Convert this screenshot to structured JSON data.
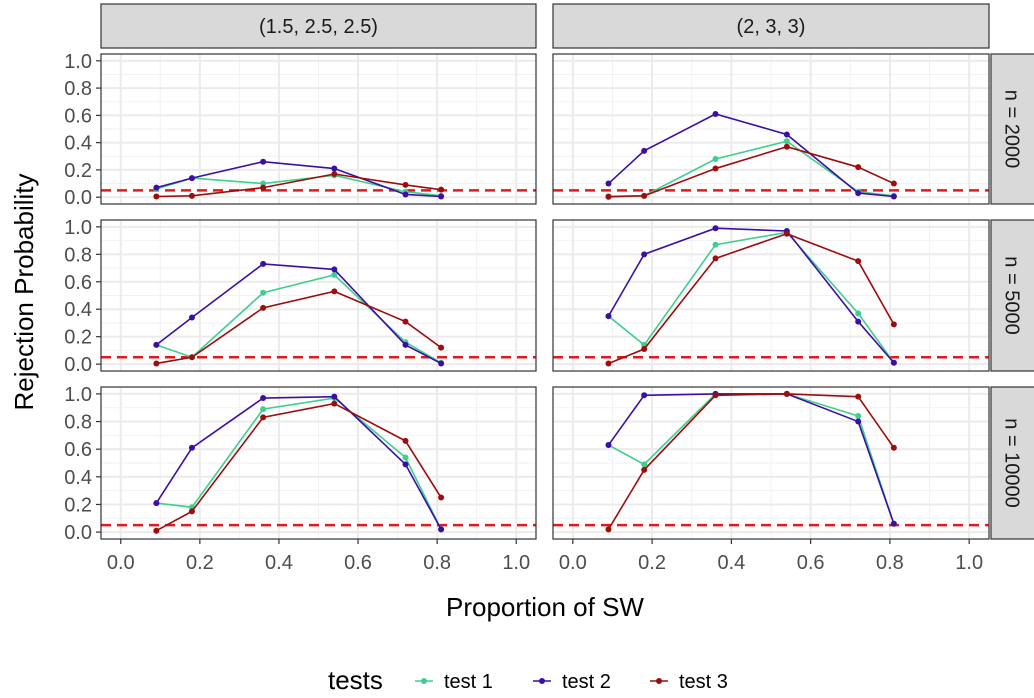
{
  "chart_data": {
    "type": "line",
    "ylabel": "Rejection Probability",
    "xlabel": "Proportion of SW",
    "xlim": [
      -0.05,
      1.05
    ],
    "ylim": [
      -0.05,
      1.05
    ],
    "x_ticks": [
      "0.0",
      "0.2",
      "0.4",
      "0.6",
      "0.8",
      "1.0"
    ],
    "y_ticks": [
      "0.0",
      "0.2",
      "0.4",
      "0.6",
      "0.8",
      "1.0"
    ],
    "x_tick_values": [
      0,
      0.2,
      0.4,
      0.6,
      0.8,
      1.0
    ],
    "y_tick_values": [
      0,
      0.2,
      0.4,
      0.6,
      0.8,
      1.0
    ],
    "reference_line": {
      "y": 0.05,
      "color": "#e31a1c",
      "style": "dashed"
    },
    "grid": true,
    "legend": {
      "title": "tests",
      "position": "bottom",
      "entries": [
        {
          "label": "test 1",
          "color": "#3ecf8e"
        },
        {
          "label": "test 2",
          "color": "#3b0fa6"
        },
        {
          "label": "test 3",
          "color": "#9c0d0d"
        }
      ]
    },
    "col_strips": [
      "(1.5, 2.5, 2.5)",
      "(2, 3, 3)"
    ],
    "row_strips": [
      "n = 2000",
      "n = 5000",
      "n = 10000"
    ],
    "x": [
      0.09,
      0.18,
      0.36,
      0.54,
      0.72,
      0.81
    ],
    "panels": [
      {
        "col": 0,
        "row": 0,
        "series": [
          {
            "name": "test 1",
            "values": [
              0.06,
              0.14,
              0.1,
              0.16,
              0.04,
              0.01
            ]
          },
          {
            "name": "test 2",
            "values": [
              0.07,
              0.14,
              0.26,
              0.21,
              0.02,
              0.005
            ]
          },
          {
            "name": "test 3",
            "values": [
              0.005,
              0.01,
              0.07,
              0.17,
              0.09,
              0.055
            ]
          }
        ]
      },
      {
        "col": 1,
        "row": 0,
        "series": [
          {
            "name": "test 1",
            "values": [
              0.0,
              0.01,
              0.28,
              0.41,
              0.04,
              0.01
            ]
          },
          {
            "name": "test 2",
            "values": [
              0.1,
              0.34,
              0.61,
              0.46,
              0.03,
              0.005
            ]
          },
          {
            "name": "test 3",
            "values": [
              0.005,
              0.01,
              0.21,
              0.37,
              0.22,
              0.1
            ]
          }
        ]
      },
      {
        "col": 0,
        "row": 1,
        "series": [
          {
            "name": "test 1",
            "values": [
              0.14,
              0.05,
              0.52,
              0.65,
              0.16,
              0.01
            ]
          },
          {
            "name": "test 2",
            "values": [
              0.14,
              0.34,
              0.73,
              0.69,
              0.14,
              0.005
            ]
          },
          {
            "name": "test 3",
            "values": [
              0.005,
              0.05,
              0.41,
              0.53,
              0.31,
              0.12
            ]
          }
        ]
      },
      {
        "col": 1,
        "row": 1,
        "series": [
          {
            "name": "test 1",
            "values": [
              0.35,
              0.14,
              0.87,
              0.96,
              0.37,
              0.01
            ]
          },
          {
            "name": "test 2",
            "values": [
              0.35,
              0.8,
              0.99,
              0.97,
              0.31,
              0.01
            ]
          },
          {
            "name": "test 3",
            "values": [
              0.005,
              0.11,
              0.77,
              0.95,
              0.75,
              0.29
            ]
          }
        ]
      },
      {
        "col": 0,
        "row": 2,
        "series": [
          {
            "name": "test 1",
            "values": [
              0.21,
              0.18,
              0.89,
              0.97,
              0.54,
              0.02
            ]
          },
          {
            "name": "test 2",
            "values": [
              0.21,
              0.61,
              0.97,
              0.98,
              0.49,
              0.02
            ]
          },
          {
            "name": "test 3",
            "values": [
              0.01,
              0.15,
              0.83,
              0.93,
              0.66,
              0.25
            ]
          }
        ]
      },
      {
        "col": 1,
        "row": 2,
        "series": [
          {
            "name": "test 1",
            "values": [
              0.63,
              0.49,
              1.0,
              1.0,
              0.84,
              0.06
            ]
          },
          {
            "name": "test 2",
            "values": [
              0.63,
              0.99,
              1.0,
              1.0,
              0.8,
              0.06
            ]
          },
          {
            "name": "test 3",
            "values": [
              0.02,
              0.45,
              0.99,
              1.0,
              0.98,
              0.61
            ]
          }
        ]
      }
    ]
  }
}
